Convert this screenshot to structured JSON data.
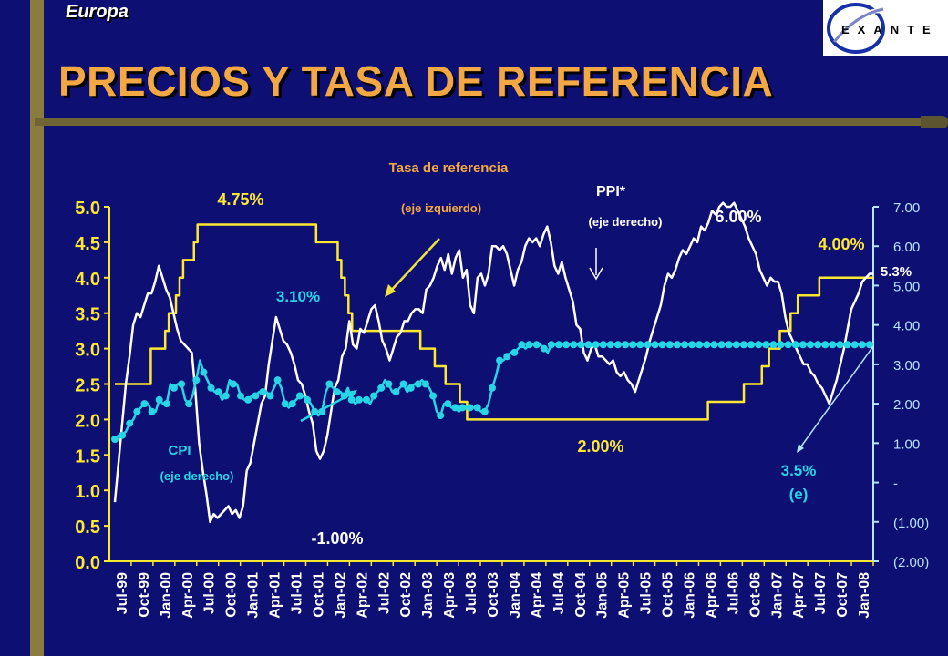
{
  "header": {
    "region": "Europa",
    "title": "PRECIOS Y TASA DE REFERENCIA",
    "logo_text": "EXANTE"
  },
  "colors": {
    "background": "#0d0f73",
    "tasa": "#ffe830",
    "ppi": "#ffffff",
    "cpi": "#27d6e6",
    "title": "#f3a844",
    "left_axis": "#ffe830",
    "right_axis": "#b7e3ff"
  },
  "chart_data": {
    "type": "line",
    "x_labels": [
      "Jul-99",
      "Oct-99",
      "Jan-00",
      "Apr-00",
      "Jul-00",
      "Oct-00",
      "Jan-01",
      "Apr-01",
      "Jul-01",
      "Oct-01",
      "Jan-02",
      "Apr-02",
      "Jul-02",
      "Oct-02",
      "Jan-03",
      "Apr-03",
      "Jul-03",
      "Oct-03",
      "Jan-04",
      "Apr-04",
      "Jul-04",
      "Oct-04",
      "Jan-05",
      "Apr-05",
      "Jul-05",
      "Oct-05",
      "Jan-06",
      "Apr-06",
      "Jul-06",
      "Oct-06",
      "Jan-07",
      "Apr-07",
      "Jul-07",
      "Oct-07",
      "Jan-08"
    ],
    "y_left": {
      "range": [
        0,
        5
      ],
      "ticks": [
        "0.0",
        "0.5",
        "1.0",
        "1.5",
        "2.0",
        "2.5",
        "3.0",
        "3.5",
        "4.0",
        "4.5",
        "5.0"
      ]
    },
    "y_right": {
      "range": [
        -2,
        7
      ],
      "ticks": [
        "(2.00)",
        "(1.00)",
        "-",
        "1.00",
        "2.00",
        "3.00",
        "4.00",
        "5.00",
        "6.00",
        "7.00"
      ]
    },
    "series": [
      {
        "axis": "left",
        "style": "step",
        "values": [
          2.5,
          2.5,
          2.5,
          2.5,
          2.5,
          2.5,
          2.5,
          2.5,
          2.5,
          2.5,
          3.0,
          3.0,
          3.0,
          3.0,
          3.25,
          3.5,
          3.5,
          3.75,
          4.0,
          4.25,
          4.25,
          4.25,
          4.5,
          4.75,
          4.75,
          4.75,
          4.75,
          4.75,
          4.75,
          4.75,
          4.75,
          4.75,
          4.75,
          4.75,
          4.75,
          4.75,
          4.75,
          4.75,
          4.75,
          4.75,
          4.75,
          4.75,
          4.75,
          4.75,
          4.75,
          4.75,
          4.75,
          4.75,
          4.75,
          4.75,
          4.75,
          4.75,
          4.75,
          4.75,
          4.75,
          4.75,
          4.5,
          4.5,
          4.5,
          4.5,
          4.5,
          4.5,
          4.25,
          4.0,
          3.75,
          3.5,
          3.25,
          3.25,
          3.25,
          3.25,
          3.25,
          3.25,
          3.25,
          3.25,
          3.25,
          3.25,
          3.25,
          3.25,
          3.25,
          3.25,
          3.25,
          3.25,
          3.25,
          3.25,
          3.25,
          3.0,
          3.0,
          3.0,
          3.0,
          2.75,
          2.75,
          2.75,
          2.5,
          2.5,
          2.5,
          2.5,
          2.25,
          2.25,
          2.0,
          2.0,
          2.0,
          2.0,
          2.0,
          2.0,
          2.0,
          2.0,
          2.0,
          2.0,
          2.0,
          2.0,
          2.0,
          2.0,
          2.0,
          2.0,
          2.0,
          2.0,
          2.0,
          2.0,
          2.0,
          2.0,
          2.0,
          2.0,
          2.0,
          2.0,
          2.0,
          2.0,
          2.0,
          2.0,
          2.0,
          2.0,
          2.0,
          2.0,
          2.0,
          2.0,
          2.0,
          2.0,
          2.0,
          2.0,
          2.0,
          2.0,
          2.0,
          2.0,
          2.0,
          2.0,
          2.0,
          2.0,
          2.0,
          2.0,
          2.0,
          2.0,
          2.0,
          2.0,
          2.0,
          2.0,
          2.0,
          2.0,
          2.0,
          2.0,
          2.0,
          2.0,
          2.0,
          2.0,
          2.0,
          2.0,
          2.0,
          2.25,
          2.25,
          2.25,
          2.25,
          2.25,
          2.25,
          2.25,
          2.25,
          2.25,
          2.25,
          2.5,
          2.5,
          2.5,
          2.5,
          2.5,
          2.75,
          2.75,
          3.0,
          3.0,
          3.0,
          3.25,
          3.25,
          3.25,
          3.5,
          3.5,
          3.75,
          3.75,
          3.75,
          3.75,
          3.75,
          3.75,
          4.0,
          4.0,
          4.0,
          4.0,
          4.0,
          4.0,
          4.0,
          4.0,
          4.0,
          4.0,
          4.0,
          4.0,
          4.0,
          4.0,
          4.0,
          4.0
        ]
      },
      {
        "axis": "right",
        "style": "line",
        "values": [
          -0.5,
          0.5,
          1.5,
          2.5,
          3.2,
          4.0,
          4.3,
          4.2,
          4.5,
          4.8,
          4.8,
          5.1,
          5.5,
          5.2,
          4.9,
          4.7,
          4.3,
          3.9,
          3.6,
          3.5,
          3.4,
          3.3,
          2.3,
          1.0,
          0.3,
          -0.3,
          -1.0,
          -0.8,
          -0.9,
          -0.8,
          -0.7,
          -0.6,
          -0.8,
          -0.7,
          -0.9,
          -0.6,
          0.3,
          0.5,
          1.0,
          1.5,
          2.0,
          2.2,
          3.0,
          3.6,
          4.2,
          3.9,
          3.6,
          3.5,
          3.3,
          3.0,
          2.6,
          2.5,
          2.2,
          1.8,
          1.5,
          0.8,
          0.6,
          0.8,
          1.2,
          1.8,
          2.4,
          2.6,
          3.2,
          3.4,
          4.1,
          3.5,
          3.4,
          3.9,
          3.8,
          4.1,
          4.4,
          4.5,
          4.1,
          3.6,
          3.4,
          3.1,
          3.4,
          3.7,
          3.8,
          4.1,
          4.1,
          4.3,
          4.4,
          4.4,
          4.3,
          4.9,
          5.0,
          5.2,
          5.5,
          5.7,
          5.4,
          5.8,
          5.3,
          5.7,
          5.9,
          5.2,
          5.4,
          4.5,
          4.3,
          5.2,
          5.3,
          5.0,
          5.3,
          6.0,
          6.0,
          5.9,
          6.0,
          5.8,
          5.4,
          5.0,
          5.4,
          5.6,
          6.0,
          6.2,
          6.1,
          6.2,
          6.0,
          6.3,
          6.5,
          6.1,
          5.5,
          5.3,
          5.6,
          5.2,
          4.9,
          4.6,
          4.0,
          3.9,
          3.3,
          3.1,
          3.4,
          3.5,
          3.2,
          3.2,
          3.1,
          3.0,
          3.1,
          2.8,
          2.7,
          2.8,
          2.6,
          2.5,
          2.3,
          2.6,
          2.9,
          3.2,
          3.6,
          3.9,
          4.2,
          4.5,
          5.0,
          5.3,
          5.2,
          5.4,
          5.7,
          5.9,
          5.8,
          6.0,
          6.2,
          6.1,
          6.5,
          6.4,
          6.6,
          6.9,
          6.8,
          7.0,
          7.1,
          7.0,
          7.0,
          7.1,
          6.9,
          6.7,
          6.5,
          6.2,
          6.0,
          5.8,
          5.4,
          5.2,
          5.0,
          5.2,
          5.1,
          5.1,
          4.8,
          4.2,
          3.8,
          3.6,
          3.4,
          3.2,
          3.0,
          3.0,
          2.8,
          2.7,
          2.5,
          2.4,
          2.2,
          2.0,
          2.3,
          2.6,
          3.0,
          3.4,
          3.9,
          4.4,
          4.6,
          4.8,
          5.1,
          5.2,
          5.3,
          5.3
        ]
      },
      {
        "axis": "right",
        "style": "line-markers",
        "values": [
          1.1,
          1.2,
          1.2,
          1.3,
          1.5,
          1.6,
          1.8,
          1.9,
          2.0,
          2.0,
          1.8,
          1.8,
          2.1,
          2.0,
          2.0,
          2.5,
          2.4,
          2.5,
          2.5,
          2.1,
          2.0,
          2.2,
          2.6,
          3.1,
          2.8,
          2.6,
          2.4,
          2.3,
          2.3,
          2.1,
          2.2,
          2.6,
          2.5,
          2.5,
          2.2,
          2.1,
          2.1,
          2.2,
          2.2,
          2.3,
          2.3,
          2.3,
          2.2,
          2.4,
          2.6,
          2.4,
          2.0,
          1.9,
          2.0,
          2.1,
          2.2,
          2.2,
          2.1,
          2.0,
          1.8,
          1.7,
          1.8,
          2.3,
          2.5,
          2.4,
          2.3,
          2.3,
          2.2,
          2.4,
          2.1,
          2.0,
          2.1,
          2.1,
          2.1,
          2.0,
          2.2,
          2.3,
          2.4,
          2.6,
          2.5,
          2.3,
          2.3,
          2.4,
          2.5,
          2.3,
          2.4,
          2.5,
          2.5,
          2.6,
          2.5,
          2.4,
          2.2,
          1.8,
          1.7,
          2.0,
          2.0,
          1.9,
          1.9,
          1.8,
          1.9,
          1.9,
          1.9,
          1.9,
          1.9,
          1.8,
          1.8,
          2.0,
          2.4,
          2.7,
          3.1,
          3.1,
          3.2,
          3.3,
          3.3,
          3.4,
          3.5,
          3.4,
          3.5,
          3.5,
          3.5,
          3.5,
          3.4,
          3.3,
          3.5,
          3.5,
          3.5,
          3.5,
          3.5,
          3.5,
          3.5,
          3.5,
          3.5,
          3.5,
          3.5,
          3.5,
          3.5,
          3.5,
          3.5,
          3.5,
          3.5,
          3.5,
          3.5,
          3.5,
          3.5,
          3.5,
          3.5,
          3.5,
          3.5,
          3.5,
          3.5,
          3.5,
          3.5,
          3.5,
          3.5,
          3.5,
          3.5,
          3.5,
          3.5,
          3.5,
          3.5,
          3.5,
          3.5,
          3.5,
          3.5,
          3.5,
          3.5,
          3.5,
          3.5,
          3.5,
          3.5,
          3.5,
          3.5,
          3.5,
          3.5,
          3.5,
          3.5,
          3.5,
          3.5,
          3.5,
          3.5,
          3.5,
          3.5,
          3.5,
          3.5,
          3.5,
          3.5,
          3.5,
          3.5,
          3.5,
          3.5,
          3.5,
          3.5,
          3.5,
          3.5,
          3.5,
          3.5,
          3.5,
          3.5,
          3.5,
          3.5,
          3.5,
          3.5,
          3.5,
          3.5,
          3.5,
          3.5,
          3.5,
          3.5,
          3.5,
          3.5,
          3.5
        ]
      }
    ],
    "annotations": {
      "tasa_label": "Tasa de referencia",
      "tasa_sub": "(eje izquierdo)",
      "ppi_label": "PPI*",
      "ppi_sub": "(eje derecho)",
      "cpi_label": "CPI",
      "cpi_sub": "(eje derecho)",
      "v_475": "4.75%",
      "v_310": "3.10%",
      "v_m100": "-1.00%",
      "v_200": "2.00%",
      "v_600": "6.00%",
      "v_400": "4.00%",
      "v_53": "5.3%",
      "v_35": "3.5%",
      "v_e": "(e)"
    }
  }
}
